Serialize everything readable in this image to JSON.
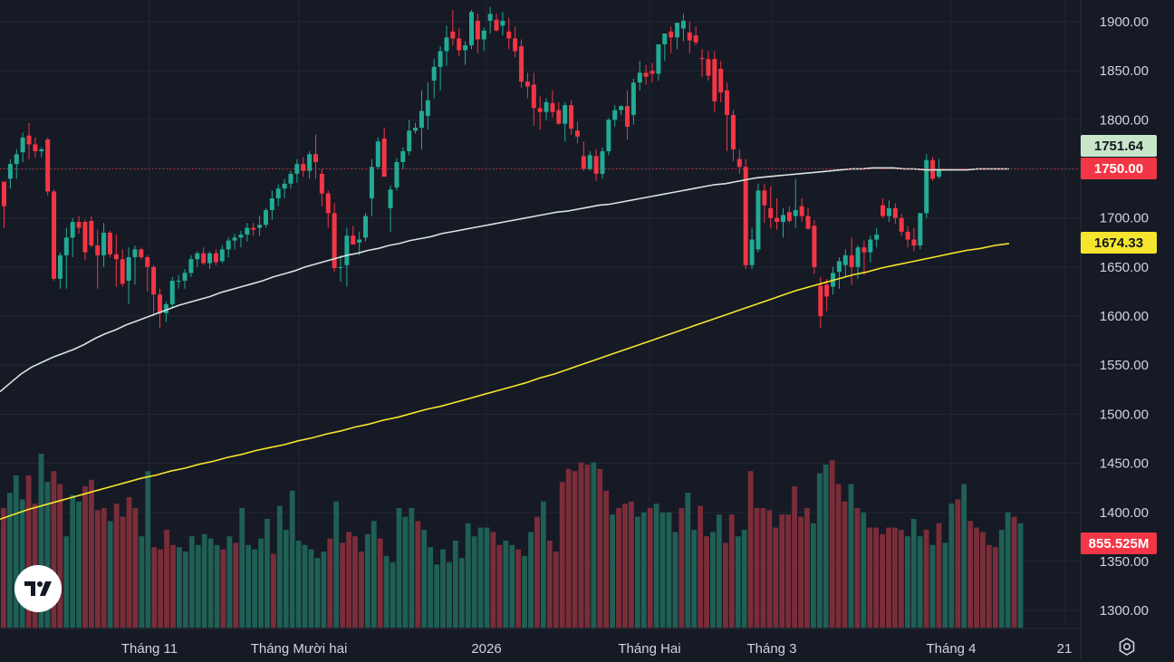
{
  "chart_data": {
    "type": "candlestick",
    "x_labels": [
      "Tháng 11",
      "Tháng Mười hai",
      "2026",
      "Tháng Hai",
      "Tháng 3",
      "Tháng 4",
      "21"
    ],
    "y_ticks": [
      "1900.00",
      "1850.00",
      "1800.00",
      "1750.00",
      "1700.00",
      "1650.00",
      "1600.00",
      "1550.00",
      "1500.00",
      "1450.00",
      "1400.00",
      "1350.00",
      "1300.00"
    ],
    "ylim": [
      1280,
      1920
    ],
    "price_tags": [
      {
        "value": "1751.64",
        "bg": "#c8e6c9",
        "fg": "#131722"
      },
      {
        "value": "1750.00",
        "bg": "#f23645",
        "fg": "#ffffff"
      },
      {
        "value": "1674.33",
        "bg": "#f5e52e",
        "fg": "#131722"
      },
      {
        "value": "855.525M",
        "bg": "#f23645",
        "fg": "#ffffff"
      }
    ],
    "ohlc": [
      [
        1737,
        1737,
        1690,
        1712
      ],
      [
        1740,
        1760,
        1730,
        1755
      ],
      [
        1755,
        1770,
        1740,
        1765
      ],
      [
        1767,
        1787,
        1757,
        1782
      ],
      [
        1784,
        1797,
        1760,
        1775
      ],
      [
        1775,
        1782,
        1762,
        1768
      ],
      [
        1768,
        1772,
        1762,
        1770
      ],
      [
        1780,
        1782,
        1723,
        1727
      ],
      [
        1727,
        1729,
        1636,
        1638
      ],
      [
        1638,
        1665,
        1628,
        1662
      ],
      [
        1662,
        1690,
        1628,
        1680
      ],
      [
        1680,
        1700,
        1660,
        1696
      ],
      [
        1696,
        1702,
        1684,
        1690
      ],
      [
        1696,
        1698,
        1657,
        1665
      ],
      [
        1697,
        1702,
        1670,
        1672
      ],
      [
        1672,
        1688,
        1628,
        1662
      ],
      [
        1662,
        1695,
        1650,
        1685
      ],
      [
        1685,
        1687,
        1660,
        1663
      ],
      [
        1663,
        1683,
        1630,
        1658
      ],
      [
        1658,
        1668,
        1630,
        1633
      ],
      [
        1636,
        1670,
        1612,
        1660
      ],
      [
        1660,
        1672,
        1632,
        1668
      ],
      [
        1668,
        1670,
        1658,
        1660
      ],
      [
        1660,
        1662,
        1625,
        1650
      ],
      [
        1650,
        1652,
        1600,
        1622
      ],
      [
        1622,
        1628,
        1588,
        1603
      ],
      [
        1603,
        1615,
        1594,
        1612
      ],
      [
        1612,
        1640,
        1608,
        1636
      ],
      [
        1636,
        1642,
        1628,
        1636
      ],
      [
        1636,
        1648,
        1628,
        1644
      ],
      [
        1644,
        1662,
        1640,
        1658
      ],
      [
        1658,
        1666,
        1650,
        1664
      ],
      [
        1664,
        1670,
        1652,
        1654
      ],
      [
        1654,
        1666,
        1648,
        1664
      ],
      [
        1664,
        1668,
        1652,
        1655
      ],
      [
        1656,
        1672,
        1654,
        1668
      ],
      [
        1668,
        1680,
        1660,
        1677
      ],
      [
        1677,
        1684,
        1668,
        1680
      ],
      [
        1680,
        1687,
        1670,
        1683
      ],
      [
        1683,
        1695,
        1676,
        1690
      ],
      [
        1690,
        1695,
        1682,
        1688
      ],
      [
        1690,
        1702,
        1682,
        1693
      ],
      [
        1693,
        1710,
        1690,
        1708
      ],
      [
        1708,
        1728,
        1698,
        1720
      ],
      [
        1720,
        1734,
        1712,
        1730
      ],
      [
        1730,
        1740,
        1720,
        1735
      ],
      [
        1735,
        1748,
        1730,
        1745
      ],
      [
        1745,
        1760,
        1736,
        1755
      ],
      [
        1755,
        1762,
        1742,
        1748
      ],
      [
        1748,
        1768,
        1740,
        1765
      ],
      [
        1765,
        1785,
        1740,
        1757
      ],
      [
        1745,
        1750,
        1712,
        1725
      ],
      [
        1725,
        1728,
        1690,
        1705
      ],
      [
        1705,
        1715,
        1645,
        1649
      ],
      [
        1649,
        1662,
        1635,
        1650
      ],
      [
        1652,
        1690,
        1630,
        1682
      ],
      [
        1682,
        1692,
        1673,
        1673
      ],
      [
        1675,
        1686,
        1662,
        1678
      ],
      [
        1680,
        1705,
        1676,
        1702
      ],
      [
        1720,
        1760,
        1702,
        1752
      ],
      [
        1752,
        1782,
        1750,
        1778
      ],
      [
        1781,
        1792,
        1744,
        1742
      ],
      [
        1710,
        1733,
        1686,
        1729
      ],
      [
        1731,
        1761,
        1728,
        1757
      ],
      [
        1757,
        1772,
        1750,
        1768
      ],
      [
        1768,
        1800,
        1764,
        1789
      ],
      [
        1789,
        1797,
        1786,
        1792
      ],
      [
        1792,
        1830,
        1770,
        1809
      ],
      [
        1804,
        1838,
        1790,
        1820
      ],
      [
        1840,
        1862,
        1822,
        1854
      ],
      [
        1854,
        1875,
        1830,
        1870
      ],
      [
        1870,
        1896,
        1855,
        1884
      ],
      [
        1890,
        1912,
        1876,
        1883
      ],
      [
        1883,
        1893,
        1865,
        1871
      ],
      [
        1871,
        1880,
        1856,
        1876
      ],
      [
        1876,
        1912,
        1872,
        1910
      ],
      [
        1901,
        1908,
        1868,
        1882
      ],
      [
        1882,
        1894,
        1870,
        1891
      ],
      [
        1901,
        1915,
        1888,
        1908
      ],
      [
        1902,
        1908,
        1890,
        1891
      ],
      [
        1896,
        1910,
        1886,
        1901
      ],
      [
        1890,
        1904,
        1872,
        1883
      ],
      [
        1883,
        1895,
        1864,
        1870
      ],
      [
        1875,
        1882,
        1833,
        1839
      ],
      [
        1839,
        1848,
        1822,
        1834
      ],
      [
        1836,
        1848,
        1794,
        1812
      ],
      [
        1812,
        1824,
        1790,
        1808
      ],
      [
        1808,
        1822,
        1800,
        1818
      ],
      [
        1817,
        1830,
        1802,
        1808
      ],
      [
        1810,
        1818,
        1795,
        1796
      ],
      [
        1796,
        1818,
        1778,
        1815
      ],
      [
        1815,
        1820,
        1785,
        1791
      ],
      [
        1789,
        1798,
        1776,
        1783
      ],
      [
        1763,
        1778,
        1748,
        1750
      ],
      [
        1750,
        1768,
        1748,
        1764
      ],
      [
        1763,
        1770,
        1738,
        1745
      ],
      [
        1745,
        1772,
        1740,
        1768
      ],
      [
        1768,
        1802,
        1764,
        1800
      ],
      [
        1800,
        1815,
        1793,
        1810
      ],
      [
        1810,
        1815,
        1805,
        1814
      ],
      [
        1814,
        1830,
        1780,
        1793
      ],
      [
        1805,
        1842,
        1795,
        1838
      ],
      [
        1838,
        1860,
        1830,
        1848
      ],
      [
        1848,
        1856,
        1836,
        1844
      ],
      [
        1850,
        1858,
        1838,
        1847
      ],
      [
        1847,
        1876,
        1840,
        1877
      ],
      [
        1877,
        1886,
        1860,
        1888
      ],
      [
        1890,
        1895,
        1868,
        1884
      ],
      [
        1884,
        1894,
        1872,
        1899
      ],
      [
        1893,
        1908,
        1880,
        1901
      ],
      [
        1889,
        1900,
        1868,
        1881
      ],
      [
        1886,
        1895,
        1876,
        1879
      ],
      [
        1863,
        1872,
        1844,
        1862
      ],
      [
        1862,
        1870,
        1840,
        1845
      ],
      [
        1862,
        1870,
        1808,
        1819
      ],
      [
        1852,
        1860,
        1818,
        1828
      ],
      [
        1830,
        1838,
        1768,
        1805
      ],
      [
        1805,
        1810,
        1758,
        1770
      ],
      [
        1760,
        1770,
        1745,
        1752
      ],
      [
        1752,
        1760,
        1648,
        1652
      ],
      [
        1652,
        1690,
        1648,
        1678
      ],
      [
        1668,
        1735,
        1665,
        1728
      ],
      [
        1728,
        1735,
        1695,
        1713
      ],
      [
        1710,
        1732,
        1690,
        1700
      ],
      [
        1700,
        1720,
        1688,
        1696
      ],
      [
        1696,
        1710,
        1680,
        1703
      ],
      [
        1706,
        1712,
        1695,
        1697
      ],
      [
        1702,
        1740,
        1690,
        1708
      ],
      [
        1712,
        1720,
        1696,
        1702
      ],
      [
        1702,
        1710,
        1688,
        1689
      ],
      [
        1692,
        1698,
        1643,
        1650
      ],
      [
        1631,
        1640,
        1588,
        1600
      ],
      [
        1632,
        1638,
        1605,
        1620
      ],
      [
        1630,
        1650,
        1622,
        1644
      ],
      [
        1645,
        1660,
        1628,
        1656
      ],
      [
        1652,
        1668,
        1640,
        1662
      ],
      [
        1662,
        1680,
        1632,
        1650
      ],
      [
        1650,
        1672,
        1638,
        1670
      ],
      [
        1670,
        1677,
        1642,
        1665
      ],
      [
        1665,
        1682,
        1655,
        1678
      ],
      [
        1678,
        1690,
        1670,
        1683
      ],
      [
        1713,
        1720,
        1700,
        1702
      ],
      [
        1702,
        1718,
        1696,
        1710
      ],
      [
        1710,
        1715,
        1694,
        1700
      ],
      [
        1700,
        1704,
        1682,
        1686
      ],
      [
        1686,
        1692,
        1670,
        1678
      ],
      [
        1678,
        1690,
        1666,
        1672
      ],
      [
        1672,
        1700,
        1668,
        1705
      ],
      [
        1705,
        1765,
        1700,
        1759
      ],
      [
        1759,
        1762,
        1738,
        1740
      ],
      [
        1742,
        1760,
        1740,
        1750
      ]
    ],
    "sma_white": [
      1523,
      1532,
      1541,
      1548,
      1553,
      1558,
      1562,
      1566,
      1571,
      1577,
      1582,
      1586,
      1591,
      1595,
      1599,
      1603,
      1607,
      1611,
      1614,
      1617,
      1620,
      1624,
      1627,
      1630,
      1633,
      1636,
      1640,
      1643,
      1646,
      1650,
      1653,
      1656,
      1659,
      1662,
      1664,
      1667,
      1669,
      1672,
      1674,
      1677,
      1679,
      1681,
      1684,
      1686,
      1688,
      1690,
      1692,
      1694,
      1696,
      1698,
      1700,
      1702,
      1704,
      1706,
      1707,
      1709,
      1711,
      1713,
      1714,
      1716,
      1718,
      1720,
      1722,
      1724,
      1726,
      1728,
      1730,
      1732,
      1734,
      1735,
      1737,
      1739,
      1741,
      1742,
      1743,
      1744,
      1745,
      1746,
      1747,
      1748,
      1749,
      1750,
      1750,
      1751,
      1751,
      1751,
      1750,
      1750,
      1749,
      1749,
      1749,
      1749,
      1749,
      1750,
      1750,
      1750,
      1750
    ],
    "sma_yellow": [
      1393,
      1398,
      1403,
      1407,
      1411,
      1415,
      1419,
      1423,
      1427,
      1431,
      1435,
      1438,
      1442,
      1445,
      1449,
      1452,
      1456,
      1459,
      1463,
      1466,
      1469,
      1473,
      1476,
      1480,
      1483,
      1487,
      1490,
      1494,
      1497,
      1501,
      1505,
      1508,
      1512,
      1516,
      1520,
      1524,
      1528,
      1532,
      1537,
      1541,
      1546,
      1551,
      1556,
      1561,
      1566,
      1571,
      1576,
      1581,
      1586,
      1591,
      1596,
      1601,
      1606,
      1611,
      1616,
      1621,
      1626,
      1630,
      1634,
      1638,
      1642,
      1645,
      1649,
      1652,
      1655,
      1658,
      1661,
      1664,
      1667,
      1669,
      1672,
      1674
    ],
    "volume_levels": [
      0.55,
      0.62,
      0.7,
      0.59,
      0.7,
      0.57,
      0.8,
      0.67,
      0.72,
      0.66,
      0.42,
      0.61,
      0.58,
      0.65,
      0.68,
      0.54,
      0.55,
      0.49,
      0.57,
      0.51,
      0.6,
      0.55,
      0.42,
      0.72,
      0.37,
      0.36,
      0.45,
      0.38,
      0.37,
      0.35,
      0.42,
      0.38,
      0.43,
      0.41,
      0.38,
      0.36,
      0.42,
      0.39,
      0.55,
      0.38,
      0.36,
      0.41,
      0.5,
      0.34,
      0.56,
      0.45,
      0.63,
      0.4,
      0.38,
      0.36,
      0.32,
      0.35,
      0.41,
      0.58,
      0.39,
      0.44,
      0.42,
      0.35,
      0.43,
      0.49,
      0.41,
      0.33,
      0.3,
      0.55,
      0.51,
      0.55,
      0.49,
      0.45,
      0.37,
      0.29,
      0.36,
      0.3,
      0.4,
      0.32,
      0.48,
      0.42,
      0.46,
      0.46,
      0.44,
      0.38,
      0.4,
      0.38,
      0.36,
      0.33,
      0.44,
      0.51,
      0.58,
      0.4,
      0.35,
      0.67,
      0.73,
      0.72,
      0.76,
      0.75,
      0.76,
      0.73,
      0.63,
      0.52,
      0.55,
      0.57,
      0.58,
      0.51,
      0.53,
      0.55,
      0.57,
      0.53,
      0.53,
      0.44,
      0.55,
      0.62,
      0.45,
      0.56,
      0.42,
      0.44,
      0.52,
      0.39,
      0.52,
      0.42,
      0.45,
      0.72,
      0.55,
      0.55,
      0.54,
      0.46,
      0.52,
      0.52,
      0.65,
      0.51,
      0.55,
      0.48,
      0.71,
      0.75,
      0.77,
      0.66,
      0.58,
      0.66,
      0.55,
      0.53,
      0.46,
      0.46,
      0.43,
      0.46,
      0.46,
      0.45,
      0.42,
      0.5,
      0.42,
      0.45,
      0.38,
      0.48,
      0.39,
      0.57,
      0.59,
      0.66,
      0.49,
      0.46,
      0.44,
      0.38,
      0.37,
      0.45,
      0.53,
      0.51,
      0.48
    ],
    "last_price_line": 1750.0
  }
}
